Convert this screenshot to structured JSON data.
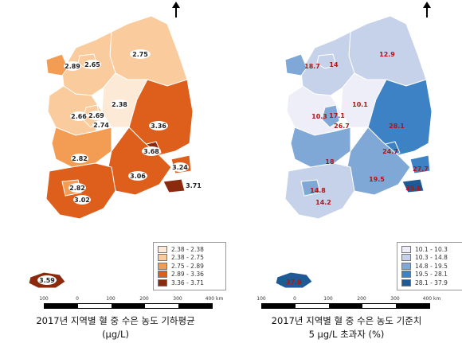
{
  "left_map": {
    "caption_line1": "2017년 지역별 혈 중 수은 농도 기하평균",
    "caption_line2": "(μg/L)",
    "legend": [
      {
        "label": "2.38 - 2.38",
        "color": "#FCE9D6"
      },
      {
        "label": "2.38 - 2.75",
        "color": "#FACB9C"
      },
      {
        "label": "2.75 - 2.89",
        "color": "#F39C54"
      },
      {
        "label": "2.89 - 3.36",
        "color": "#DE5E1B"
      },
      {
        "label": "3.36 - 3.71",
        "color": "#8C2A0E"
      }
    ],
    "values": [
      "2.75",
      "2.89",
      "2.65",
      "2.38",
      "2.66",
      "2.69",
      "2.74",
      "3.36",
      "3.68",
      "2.82",
      "3.06",
      "3.24",
      "3.71",
      "2.82",
      "3.02",
      "3.59"
    ]
  },
  "right_map": {
    "caption_line1": "2017년 지역별 혈 중 수은 농도 기준치",
    "caption_line2": "5 μg/L 초과자 (%)",
    "legend": [
      {
        "label": "10.1 - 10.3",
        "color": "#EEEEF8"
      },
      {
        "label": "10.3 - 14.8",
        "color": "#C6D2EA"
      },
      {
        "label": "14.8 - 19.5",
        "color": "#7FA8D7"
      },
      {
        "label": "19.5 - 28.1",
        "color": "#3D82C4"
      },
      {
        "label": "28.1 - 37.9",
        "color": "#1E5A96"
      }
    ],
    "values": [
      "12.9",
      "18.7",
      "14",
      "10.3",
      "17.1",
      "10.1",
      "26.7",
      "28.1",
      "24.7",
      "18",
      "19.5",
      "27.7",
      "35.8",
      "14.8",
      "14.2",
      "37.9"
    ]
  },
  "scale": {
    "ticks": [
      "100",
      "0",
      "100",
      "200",
      "300",
      "400 km"
    ]
  },
  "north_arrow": "north-arrow-icon"
}
